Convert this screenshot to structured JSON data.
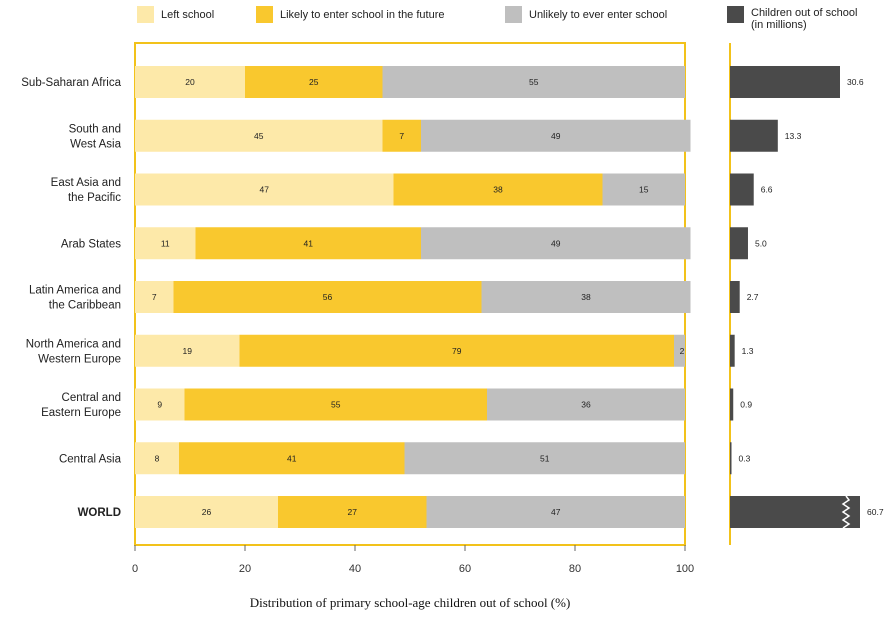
{
  "chart_data": {
    "type": "bar",
    "orientation": "horizontal",
    "stacked": true,
    "xlabel": "Distribution of primary school-age children out of school (%)",
    "xlim": [
      0,
      100
    ],
    "x_ticks": [
      "0",
      "20",
      "40",
      "60",
      "80",
      "100"
    ],
    "legend_position": "top",
    "categories": [
      [
        "Sub-Saharan Africa"
      ],
      [
        "South and",
        "West Asia"
      ],
      [
        "East Asia and",
        "the Pacific"
      ],
      [
        "Arab States"
      ],
      [
        "Latin America and",
        "the Caribbean"
      ],
      [
        "North America and",
        "Western Europe"
      ],
      [
        "Central and",
        "Eastern Europe"
      ],
      [
        "Central Asia"
      ],
      [
        "WORLD"
      ]
    ],
    "series": [
      {
        "name": "Left school",
        "color": "#fde9a9",
        "values": [
          20,
          45,
          47,
          11,
          7,
          19,
          9,
          8,
          26
        ]
      },
      {
        "name": "Likely to enter school in the future",
        "color": "#f9c82e",
        "values": [
          25,
          7,
          38,
          41,
          56,
          79,
          55,
          41,
          27
        ]
      },
      {
        "name": "Unlikely to ever enter school",
        "color": "#bfbfbf",
        "values": [
          55,
          49,
          15,
          49,
          38,
          2,
          36,
          51,
          47
        ]
      }
    ],
    "side_panel": {
      "legend_label": [
        "Children out of school",
        "(in millions)"
      ],
      "color": "#4a4a4a",
      "values": [
        30.6,
        13.3,
        6.6,
        5.0,
        2.7,
        1.3,
        0.9,
        0.3,
        60.7
      ],
      "value_labels": [
        "30.6",
        "13.3",
        "6.6",
        "5.0",
        "2.7",
        "1.3",
        "0.9",
        "0.3",
        "60.7"
      ],
      "broken_bar_index": 8
    },
    "frame_color": "#f2c21a"
  }
}
